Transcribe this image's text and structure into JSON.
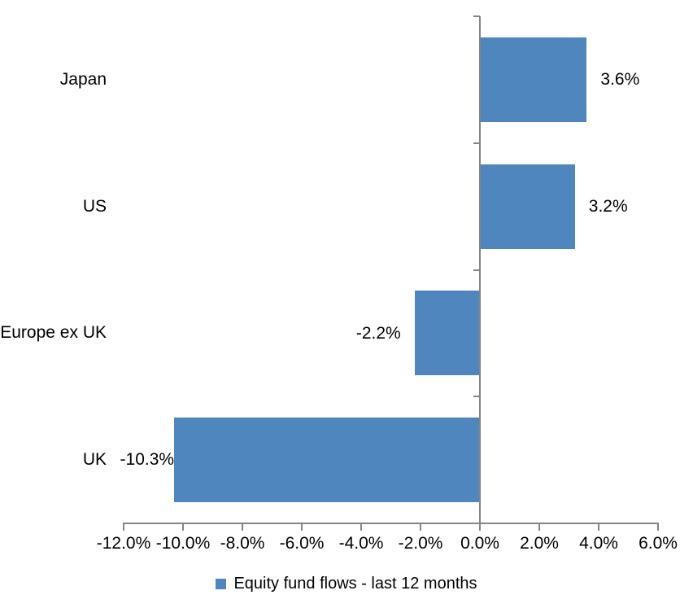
{
  "chart_data": {
    "type": "bar",
    "orientation": "horizontal",
    "title": "",
    "categories": [
      "Japan",
      "US",
      "Europe ex UK",
      "UK"
    ],
    "series": [
      {
        "name": "Equity fund flows - last 12 months",
        "values": [
          3.6,
          3.2,
          -2.2,
          -10.3
        ],
        "data_labels": [
          "3.6%",
          "3.2%",
          "-2.2%",
          "-10.3%"
        ]
      }
    ],
    "x_axis": {
      "min": -12,
      "max": 6,
      "step": 2,
      "tick_labels": [
        "-12.0%",
        "-10.0%",
        "-8.0%",
        "-6.0%",
        "-4.0%",
        "-2.0%",
        "0.0%",
        "2.0%",
        "4.0%",
        "6.0%"
      ]
    },
    "y_axis": {
      "gridlines": false
    },
    "legend": {
      "position": "bottom",
      "label": "Equity fund flows - last 12 months"
    },
    "colors": {
      "bar": "#4E86BD",
      "axis": "#858585",
      "text": "#000000",
      "background": "#FFFFFF"
    }
  }
}
